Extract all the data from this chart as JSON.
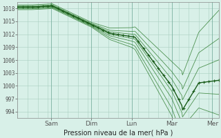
{
  "background_color": "#d8f0e8",
  "grid_color": "#a8cfc0",
  "line_color_dark": "#1a5c1a",
  "line_color_mid": "#2a7a2a",
  "ylabel_ticks": [
    994,
    997,
    1000,
    1003,
    1006,
    1009,
    1012,
    1015,
    1018
  ],
  "xlabel_title": "Pression niveau de la mer( hPa )",
  "ylim": [
    992.5,
    1019.5
  ],
  "xlim": [
    0,
    120
  ],
  "day_ticks": [
    20,
    44,
    68,
    92,
    116
  ],
  "day_ticks_labels": [
    "Sam",
    "Dim",
    "Lun",
    "Mar",
    "Mer"
  ],
  "vline_positions": [
    20,
    44,
    68,
    92,
    116
  ]
}
